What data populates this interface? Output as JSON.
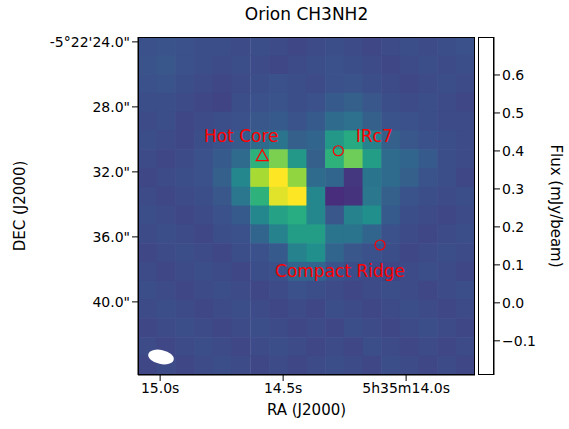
{
  "chart_data": {
    "type": "heatmap",
    "title": "Orion CH3NH2",
    "x_label": "RA (J2000)",
    "y_label": "DEC (J2000)",
    "xlim": [
      15.09,
      13.72
    ],
    "ylim": [
      44.5,
      23.7
    ],
    "xticks": [
      {
        "value": 15.0,
        "label": "15.0s"
      },
      {
        "value": 14.5,
        "label": "14.5s"
      },
      {
        "value": 14.0,
        "label": "5h35m14.0s"
      }
    ],
    "yticks": [
      {
        "value": 24,
        "label": "-5°22'24.0\""
      },
      {
        "value": 28,
        "label": "28.0\""
      },
      {
        "value": 32,
        "label": "32.0\""
      },
      {
        "value": 36,
        "label": "36.0\""
      },
      {
        "value": 40,
        "label": "40.0\""
      }
    ],
    "x": [
      15.051,
      14.975,
      14.899,
      14.823,
      14.747,
      14.671,
      14.594,
      14.518,
      14.442,
      14.366,
      14.29,
      14.214,
      14.138,
      14.062,
      13.986,
      13.91,
      13.834,
      13.758
    ],
    "y": [
      24.27,
      25.43,
      26.58,
      27.74,
      28.89,
      30.05,
      31.21,
      32.36,
      33.52,
      34.67,
      35.83,
      36.99,
      38.14,
      39.3,
      40.45,
      41.61,
      42.77,
      43.92
    ],
    "cells": [
      [
        0.03,
        0.04,
        0.03,
        0.02,
        0.02,
        0.01,
        0.02,
        0.01,
        0.0,
        0.01,
        0.02,
        0.01,
        0.0,
        0.01,
        0.02,
        0.01,
        0.02,
        0.03
      ],
      [
        0.04,
        0.05,
        0.03,
        0.02,
        0.01,
        0.02,
        0.01,
        0.0,
        0.01,
        0.02,
        0.03,
        0.02,
        0.01,
        0.0,
        0.01,
        0.02,
        0.01,
        0.02
      ],
      [
        0.03,
        0.04,
        0.02,
        0.01,
        0.0,
        0.01,
        0.02,
        0.03,
        0.02,
        0.01,
        0.03,
        0.04,
        0.02,
        0.01,
        0.0,
        0.01,
        0.02,
        0.01
      ],
      [
        0.02,
        0.02,
        0.01,
        0.0,
        -0.01,
        0.02,
        0.03,
        0.04,
        0.02,
        0.03,
        0.06,
        0.08,
        0.05,
        0.02,
        0.01,
        0.02,
        0.01,
        0.0
      ],
      [
        0.01,
        0.02,
        0.0,
        0.01,
        0.02,
        0.03,
        0.05,
        0.06,
        0.04,
        0.06,
        0.12,
        0.14,
        0.08,
        0.04,
        0.03,
        0.02,
        0.01,
        0.01
      ],
      [
        0.02,
        0.01,
        0.0,
        0.02,
        0.04,
        0.06,
        0.12,
        0.15,
        0.08,
        0.1,
        0.28,
        0.35,
        0.2,
        0.08,
        0.05,
        0.03,
        0.02,
        0.01
      ],
      [
        0.01,
        0.0,
        0.01,
        0.03,
        0.06,
        0.12,
        0.38,
        0.52,
        0.28,
        0.08,
        0.38,
        0.5,
        0.3,
        0.12,
        0.1,
        0.06,
        0.02,
        0.01
      ],
      [
        0.0,
        0.01,
        0.02,
        0.03,
        0.08,
        0.22,
        0.58,
        0.7,
        0.55,
        0.12,
        0.1,
        -0.05,
        0.15,
        0.12,
        0.08,
        0.04,
        0.02,
        0.0
      ],
      [
        0.01,
        0.0,
        0.01,
        0.02,
        0.05,
        0.16,
        0.38,
        0.66,
        0.7,
        0.22,
        -0.08,
        -0.06,
        0.16,
        0.08,
        0.04,
        0.02,
        0.01,
        0.02
      ],
      [
        0.02,
        0.01,
        0.0,
        0.01,
        0.03,
        0.06,
        0.22,
        0.32,
        0.36,
        0.22,
        0.05,
        0.2,
        0.25,
        0.06,
        0.02,
        0.01,
        0.0,
        0.01
      ],
      [
        0.01,
        0.02,
        0.01,
        0.0,
        0.02,
        0.03,
        0.1,
        0.2,
        0.3,
        0.3,
        0.15,
        0.15,
        0.1,
        0.03,
        0.01,
        0.0,
        0.01,
        0.02
      ],
      [
        0.0,
        0.01,
        0.02,
        0.01,
        0.0,
        0.02,
        0.03,
        0.06,
        0.2,
        0.25,
        0.1,
        0.05,
        0.03,
        0.02,
        0.0,
        0.01,
        0.02,
        0.01
      ],
      [
        0.01,
        0.0,
        0.01,
        0.02,
        0.01,
        0.0,
        0.02,
        0.03,
        0.1,
        0.1,
        0.04,
        0.02,
        0.01,
        0.0,
        0.01,
        0.02,
        0.01,
        0.0
      ],
      [
        0.02,
        0.01,
        0.0,
        0.01,
        0.02,
        0.01,
        0.0,
        0.01,
        0.03,
        0.02,
        0.01,
        0.0,
        0.01,
        0.02,
        0.01,
        0.0,
        0.01,
        0.02
      ],
      [
        0.01,
        0.02,
        0.01,
        0.0,
        0.01,
        0.02,
        0.01,
        0.0,
        0.01,
        0.0,
        0.02,
        0.01,
        0.0,
        0.01,
        0.02,
        0.01,
        0.0,
        0.01
      ],
      [
        0.0,
        0.01,
        0.02,
        0.01,
        0.0,
        0.01,
        0.02,
        0.01,
        0.0,
        0.01,
        0.0,
        0.02,
        0.01,
        0.0,
        0.01,
        0.02,
        0.01,
        0.0
      ],
      [
        0.01,
        0.0,
        0.01,
        0.02,
        0.01,
        0.0,
        0.01,
        0.02,
        0.01,
        0.0,
        0.01,
        0.0,
        0.02,
        0.01,
        0.0,
        0.01,
        0.0,
        0.01
      ],
      [
        0.0,
        0.01,
        0.0,
        0.01,
        0.02,
        0.01,
        0.0,
        0.01,
        0.0,
        0.01,
        0.02,
        0.01,
        0.0,
        0.02,
        0.01,
        0.0,
        0.01,
        0.0
      ]
    ],
    "colorbar": {
      "label": "Flux (mJy/beam)",
      "range": [
        -0.19,
        0.7
      ],
      "ticks": [
        {
          "value": -0.1,
          "label": "−0.1"
        },
        {
          "value": 0,
          "label": "0.0"
        },
        0.1,
        0.2,
        0.3,
        0.4,
        0.5,
        0.6
      ]
    },
    "annotations": [
      {
        "text": "Hot Core",
        "x": 14.585,
        "y": 31.0,
        "marker": "triangle",
        "color": "red"
      },
      {
        "text": "IRc7",
        "x": 14.276,
        "y": 30.7,
        "marker": "circle",
        "color": "red"
      },
      {
        "text": "Compact Ridge",
        "x": 14.106,
        "y": 36.5,
        "marker": "circle",
        "color": "red"
      }
    ]
  }
}
